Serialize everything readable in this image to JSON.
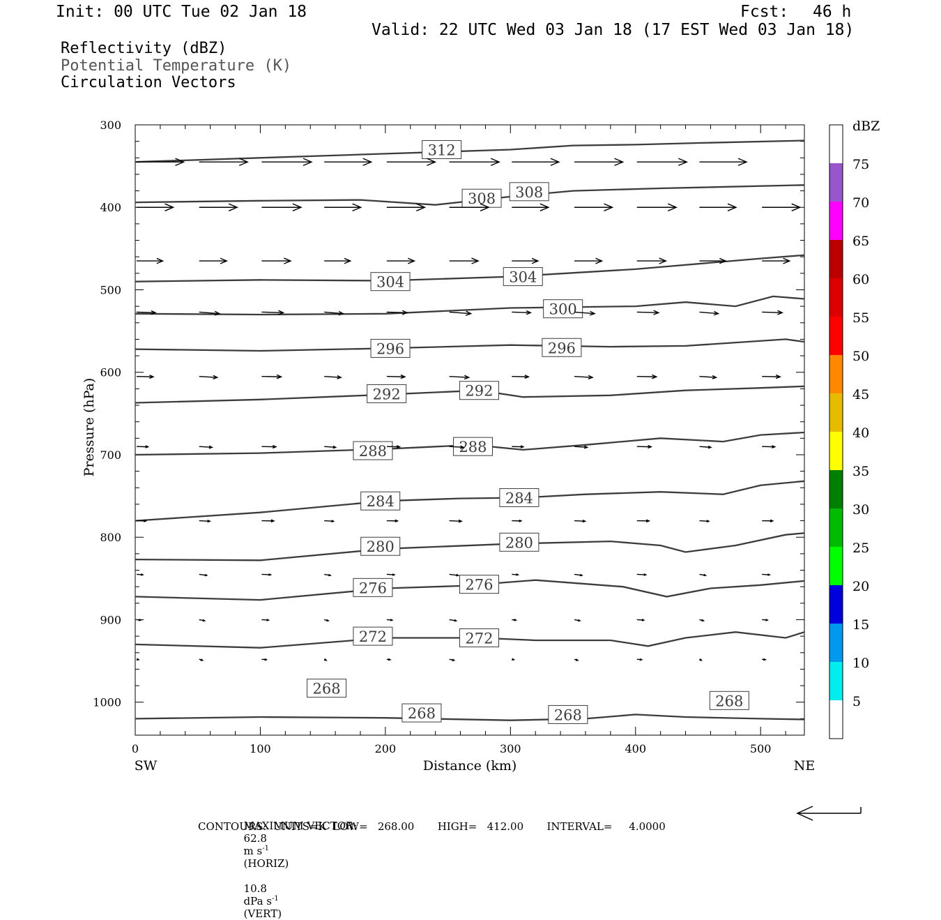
{
  "header": {
    "init": "Init: 00 UTC Tue 02 Jan 18",
    "fcst_label": "Fcst:",
    "fcst_value": "46 h",
    "valid": "Valid: 22 UTC Wed 03 Jan 18 (17 EST Wed 03 Jan 18)"
  },
  "legend": {
    "reflectivity": "Reflectivity (dBZ)",
    "theta": "Potential Temperature (K)",
    "vectors": "Circulation Vectors"
  },
  "footer": {
    "max_vector_label": "MAXIMUM VECTOR:",
    "horiz_value": "62.8",
    "horiz_unit": "m s",
    "horiz_tag": "(HORIZ)",
    "vert_value": "10.8",
    "vert_unit": "dPa s",
    "vert_tag": "(VERT)",
    "exp": "-1",
    "contours": "CONTOURS:  UNITS=K  LOW=   268.00       HIGH=   412.00       INTERVAL=     4.0000"
  },
  "chart_data": {
    "type": "cross-section",
    "xlabel": "Distance (km)",
    "ylabel": "Pressure (hPa)",
    "xlim": [
      0,
      535
    ],
    "ylim": [
      1040,
      300
    ],
    "xticks": [
      0,
      100,
      200,
      300,
      400,
      500
    ],
    "yticks": [
      300,
      400,
      500,
      600,
      700,
      800,
      900,
      1000
    ],
    "x_end_labels": {
      "left": "SW",
      "right": "NE"
    },
    "colorbar": {
      "title": "dBZ",
      "labels": [
        "75",
        "70",
        "65",
        "60",
        "55",
        "50",
        "45",
        "40",
        "35",
        "30",
        "25",
        "20",
        "15",
        "10",
        "5"
      ],
      "colors": [
        "#ffffff",
        "#9955cc",
        "#ff00ff",
        "#bb0000",
        "#dd0000",
        "#ff0000",
        "#ff8800",
        "#e6bb00",
        "#ffff00",
        "#007f00",
        "#00bb00",
        "#00ff00",
        "#0000dd",
        "#0099ee",
        "#00eeee",
        "#ffffff"
      ]
    },
    "theta_contours": [
      {
        "value": "312",
        "labels": [
          [
            245,
            330
          ]
        ],
        "points": [
          [
            0,
            345
          ],
          [
            100,
            340
          ],
          [
            200,
            335
          ],
          [
            300,
            330
          ],
          [
            350,
            325
          ],
          [
            400,
            324
          ],
          [
            450,
            322
          ],
          [
            535,
            319
          ]
        ]
      },
      {
        "value": "308",
        "labels": [
          [
            277,
            389
          ],
          [
            315,
            381
          ]
        ],
        "points": [
          [
            0,
            394
          ],
          [
            100,
            392
          ],
          [
            180,
            391
          ],
          [
            240,
            397
          ],
          [
            300,
            387
          ],
          [
            350,
            380
          ],
          [
            420,
            377
          ],
          [
            535,
            373
          ]
        ]
      },
      {
        "value": "304",
        "labels": [
          [
            204,
            490
          ],
          [
            310,
            484
          ]
        ],
        "points": [
          [
            0,
            490
          ],
          [
            100,
            488
          ],
          [
            200,
            489
          ],
          [
            300,
            484
          ],
          [
            400,
            475
          ],
          [
            500,
            462
          ],
          [
            535,
            458
          ]
        ]
      },
      {
        "value": "300",
        "labels": [
          [
            342,
            523
          ]
        ],
        "points": [
          [
            0,
            529
          ],
          [
            100,
            530
          ],
          [
            200,
            529
          ],
          [
            300,
            522
          ],
          [
            400,
            520
          ],
          [
            440,
            515
          ],
          [
            480,
            520
          ],
          [
            510,
            508
          ],
          [
            535,
            511
          ]
        ]
      },
      {
        "value": "296",
        "labels": [
          [
            204,
            571
          ],
          [
            341,
            570
          ]
        ],
        "points": [
          [
            0,
            572
          ],
          [
            100,
            574
          ],
          [
            200,
            571
          ],
          [
            300,
            567
          ],
          [
            380,
            569
          ],
          [
            440,
            568
          ],
          [
            520,
            560
          ],
          [
            535,
            563
          ]
        ]
      },
      {
        "value": "292",
        "labels": [
          [
            201,
            626
          ],
          [
            275,
            622
          ]
        ],
        "points": [
          [
            0,
            637
          ],
          [
            100,
            633
          ],
          [
            200,
            627
          ],
          [
            275,
            622
          ],
          [
            310,
            630
          ],
          [
            380,
            628
          ],
          [
            440,
            622
          ],
          [
            500,
            619
          ],
          [
            535,
            617
          ]
        ]
      },
      {
        "value": "288",
        "labels": [
          [
            190,
            695
          ],
          [
            270,
            690
          ]
        ],
        "points": [
          [
            0,
            700
          ],
          [
            100,
            698
          ],
          [
            200,
            693
          ],
          [
            270,
            688
          ],
          [
            310,
            694
          ],
          [
            360,
            688
          ],
          [
            420,
            680
          ],
          [
            470,
            684
          ],
          [
            500,
            676
          ],
          [
            535,
            673
          ]
        ]
      },
      {
        "value": "284",
        "labels": [
          [
            196,
            756
          ],
          [
            307,
            752
          ]
        ],
        "points": [
          [
            0,
            780
          ],
          [
            100,
            770
          ],
          [
            200,
            756
          ],
          [
            260,
            753
          ],
          [
            310,
            752
          ],
          [
            360,
            748
          ],
          [
            420,
            745
          ],
          [
            470,
            748
          ],
          [
            500,
            737
          ],
          [
            535,
            732
          ]
        ]
      },
      {
        "value": "280",
        "labels": [
          [
            196,
            811
          ],
          [
            307,
            806
          ]
        ],
        "points": [
          [
            0,
            827
          ],
          [
            100,
            828
          ],
          [
            200,
            814
          ],
          [
            300,
            808
          ],
          [
            380,
            805
          ],
          [
            420,
            810
          ],
          [
            440,
            818
          ],
          [
            480,
            810
          ],
          [
            520,
            797
          ],
          [
            535,
            795
          ]
        ]
      },
      {
        "value": "276",
        "labels": [
          [
            190,
            861
          ],
          [
            275,
            857
          ]
        ],
        "points": [
          [
            0,
            872
          ],
          [
            100,
            876
          ],
          [
            200,
            862
          ],
          [
            260,
            859
          ],
          [
            320,
            852
          ],
          [
            390,
            860
          ],
          [
            425,
            872
          ],
          [
            460,
            862
          ],
          [
            500,
            858
          ],
          [
            535,
            853
          ]
        ]
      },
      {
        "value": "272",
        "labels": [
          [
            190,
            920
          ],
          [
            275,
            922
          ]
        ],
        "points": [
          [
            0,
            930
          ],
          [
            100,
            934
          ],
          [
            200,
            922
          ],
          [
            275,
            922
          ],
          [
            320,
            925
          ],
          [
            380,
            925
          ],
          [
            410,
            932
          ],
          [
            440,
            922
          ],
          [
            480,
            915
          ],
          [
            520,
            922
          ],
          [
            535,
            915
          ]
        ]
      },
      {
        "value": "268",
        "labels": [
          [
            153,
            983
          ],
          [
            229,
            1013
          ],
          [
            346,
            1015
          ],
          [
            475,
            998
          ]
        ],
        "points": [
          [
            0,
            1020
          ],
          [
            100,
            1018
          ],
          [
            200,
            1019
          ],
          [
            300,
            1022
          ],
          [
            360,
            1020
          ],
          [
            400,
            1015
          ],
          [
            440,
            1018
          ],
          [
            500,
            1020
          ],
          [
            535,
            1021
          ]
        ]
      }
    ],
    "vector_rows": [
      {
        "p": 345,
        "u": 4.5,
        "w": 0
      },
      {
        "p": 400,
        "u": 3.5,
        "w": 0
      },
      {
        "p": 465,
        "u": 2.5,
        "w": 0
      },
      {
        "p": 527,
        "u": 1.8,
        "w": 0.15
      },
      {
        "p": 605,
        "u": 1.6,
        "w": 0.1
      },
      {
        "p": 690,
        "u": 1.1,
        "w": 0.08
      },
      {
        "p": 780,
        "u": 0.9,
        "w": 0.05
      },
      {
        "p": 845,
        "u": 0.6,
        "w": 0.1
      },
      {
        "p": 900,
        "u": 0.4,
        "w": 0.1
      },
      {
        "p": 948,
        "u": 0.2,
        "w": 0.1
      }
    ]
  }
}
